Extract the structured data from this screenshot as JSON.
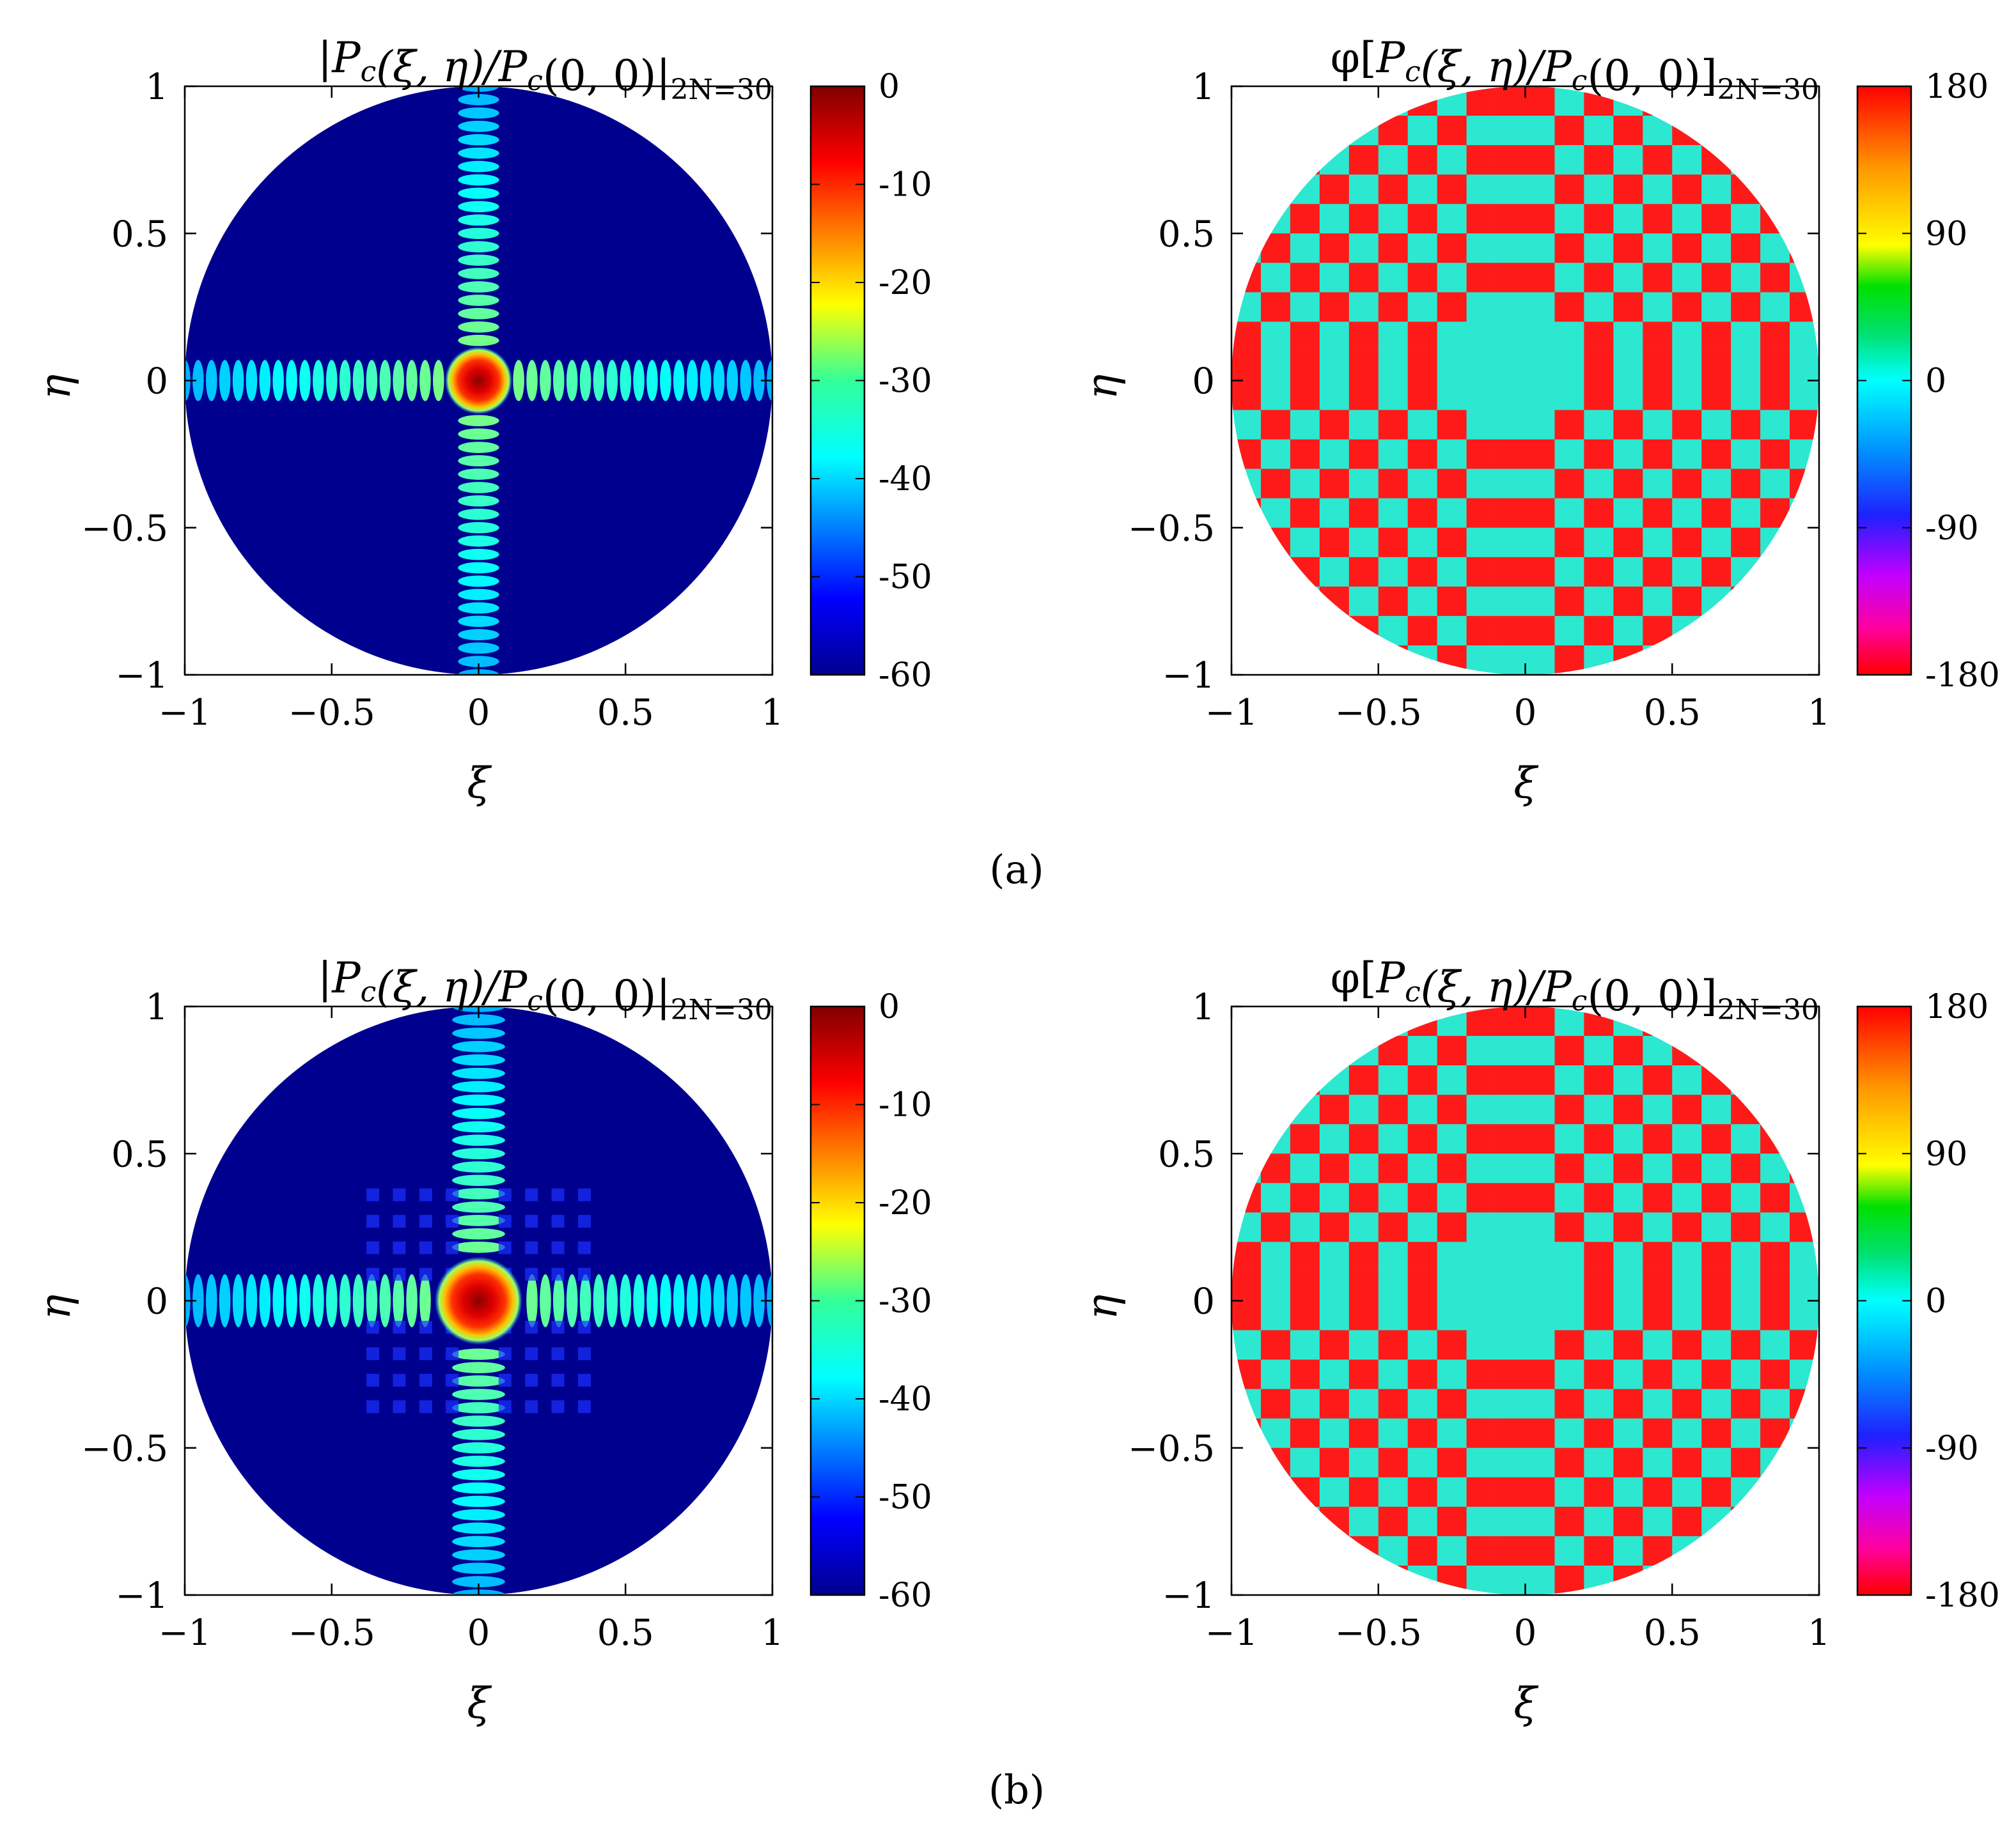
{
  "panel_labels": [
    "(a)",
    "(b)"
  ],
  "chart_data": [
    {
      "type": "heatmap",
      "panel": "(a)",
      "quantity": "magnitude",
      "title_parts": {
        "open": "|",
        "P": "P",
        "c": "c",
        "args": "(ξ, η)/",
        "P2": "P",
        "c2": "c",
        "args2": "(0, 0)|",
        "sub": "2N=30"
      },
      "xlabel": "ξ",
      "ylabel": "η",
      "xlim": [
        -1,
        1
      ],
      "ylim": [
        -1,
        1
      ],
      "xticks": [
        "−1",
        "−0.5",
        "0",
        "0.5",
        "1"
      ],
      "yticks": [
        "1",
        "0.5",
        "0",
        "−0.5",
        "−1"
      ],
      "domain": "unit disk",
      "colorbar": {
        "range": [
          -60,
          0
        ],
        "ticks": [
          "0",
          "-10",
          "-20",
          "-30",
          "-40",
          "-50",
          "-60"
        ],
        "colormap": "jet"
      },
      "pattern": {
        "cross_halfwidth": 0.07,
        "peak_radius": 0.1,
        "peak_value_db": 0,
        "background_db": -60,
        "arm_value_db": -40
      }
    },
    {
      "type": "heatmap",
      "panel": "(a)",
      "quantity": "phase",
      "title_parts": {
        "open": "φ[",
        "P": "P",
        "c": "c",
        "args": "(ξ, η)/",
        "P2": "P",
        "c2": "c",
        "args2": "(0, 0)]",
        "sub": "2N=30"
      },
      "xlabel": "ξ",
      "ylabel": "η",
      "xlim": [
        -1,
        1
      ],
      "ylim": [
        -1,
        1
      ],
      "xticks": [
        "−1",
        "−0.5",
        "0",
        "0.5",
        "1"
      ],
      "yticks": [
        "1",
        "0.5",
        "0",
        "−0.5",
        "−1"
      ],
      "domain": "unit disk",
      "colorbar": {
        "range": [
          -180,
          180
        ],
        "ticks": [
          "180",
          "90",
          "0",
          "-90",
          "-180"
        ],
        "colormap": "hsv-like"
      },
      "pattern": {
        "values_deg": [
          0,
          180
        ],
        "center_halfwidth": 0.15
      }
    },
    {
      "type": "heatmap",
      "panel": "(b)",
      "quantity": "magnitude",
      "title_parts": {
        "open": "|",
        "P": "P",
        "c": "c",
        "args": "(ξ, η)/",
        "P2": "P",
        "c2": "c",
        "args2": "(0, 0)|",
        "sub": "2N=30"
      },
      "xlabel": "ξ",
      "ylabel": "η",
      "xlim": [
        -1,
        1
      ],
      "ylim": [
        -1,
        1
      ],
      "xticks": [
        "−1",
        "−0.5",
        "0",
        "0.5",
        "1"
      ],
      "yticks": [
        "1",
        "0.5",
        "0",
        "−0.5",
        "−1"
      ],
      "domain": "unit disk",
      "colorbar": {
        "range": [
          -60,
          0
        ],
        "ticks": [
          "0",
          "-10",
          "-20",
          "-30",
          "-40",
          "-50",
          "-60"
        ],
        "colormap": "jet"
      },
      "pattern": {
        "cross_halfwidth": 0.09,
        "peak_radius": 0.13,
        "peak_value_db": 0,
        "background_db": -60,
        "arm_value_db": -38
      }
    },
    {
      "type": "heatmap",
      "panel": "(b)",
      "quantity": "phase",
      "title_parts": {
        "open": "φ[",
        "P": "P",
        "c": "c",
        "args": "(ξ, η)/",
        "P2": "P",
        "c2": "c",
        "args2": "(0, 0)]",
        "sub": "2N=30"
      },
      "xlabel": "ξ",
      "ylabel": "η",
      "xlim": [
        -1,
        1
      ],
      "ylim": [
        -1,
        1
      ],
      "xticks": [
        "−1",
        "−0.5",
        "0",
        "0.5",
        "1"
      ],
      "yticks": [
        "1",
        "0.5",
        "0",
        "−0.5",
        "−1"
      ],
      "domain": "unit disk",
      "colorbar": {
        "range": [
          -180,
          180
        ],
        "ticks": [
          "180",
          "90",
          "0",
          "-90",
          "-180"
        ],
        "colormap": "hsv-like"
      },
      "pattern": {
        "values_deg": [
          0,
          180
        ],
        "center_halfwidth": 0.15
      }
    }
  ]
}
